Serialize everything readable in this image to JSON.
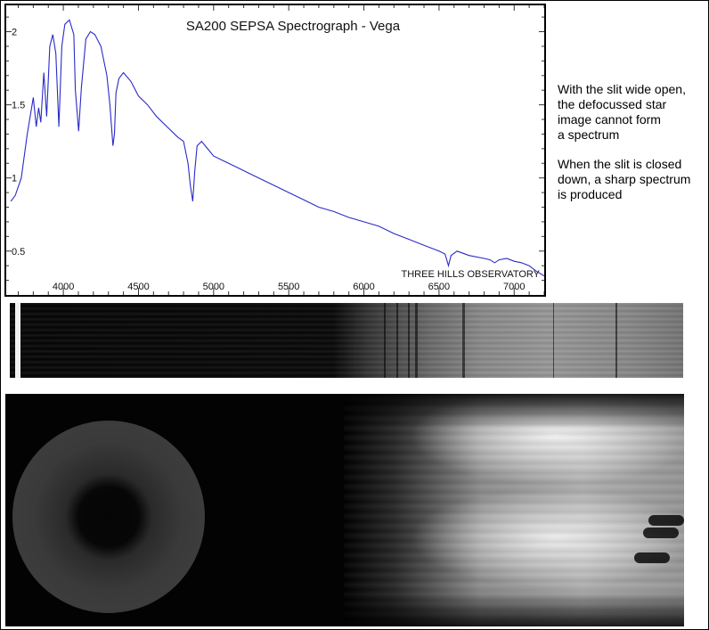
{
  "chart_data": {
    "type": "line",
    "title": "SA200 SEPSA Spectrograph - Vega",
    "watermark": "THREE HILLS OBSERVATORY",
    "xlim": [
      3620,
      7200
    ],
    "ylim": [
      0.2,
      2.18
    ],
    "xticks": [
      4000,
      4500,
      5000,
      5500,
      6000,
      6500,
      7000
    ],
    "yticks": [
      0.5,
      1,
      1.5,
      2
    ],
    "ytick_labels": [
      "0.5",
      "1",
      "1.5",
      "2"
    ],
    "line_color": "#2a2ac8",
    "series": [
      {
        "x": [
          3650,
          3680,
          3720,
          3760,
          3800,
          3820,
          3836,
          3850,
          3870,
          3889,
          3910,
          3930,
          3950,
          3970,
          3990,
          4010,
          4040,
          4070,
          4080,
          4102,
          4120,
          4150,
          4180,
          4210,
          4250,
          4290,
          4310,
          4330,
          4340,
          4350,
          4370,
          4400,
          4450,
          4500,
          4560,
          4620,
          4700,
          4760,
          4800,
          4830,
          4845,
          4861,
          4875,
          4890,
          4920,
          4960,
          5000,
          5100,
          5200,
          5300,
          5400,
          5500,
          5600,
          5700,
          5800,
          5900,
          6000,
          6100,
          6200,
          6300,
          6400,
          6500,
          6540,
          6563,
          6580,
          6620,
          6700,
          6800,
          6840,
          6870,
          6900,
          6950,
          7000,
          7050,
          7100,
          7150,
          7200
        ],
        "y": [
          0.84,
          0.88,
          1.0,
          1.3,
          1.55,
          1.35,
          1.48,
          1.38,
          1.72,
          1.42,
          1.9,
          1.98,
          1.85,
          1.35,
          1.9,
          2.05,
          2.08,
          1.98,
          1.6,
          1.32,
          1.62,
          1.95,
          2.0,
          1.98,
          1.9,
          1.7,
          1.5,
          1.22,
          1.3,
          1.58,
          1.68,
          1.72,
          1.66,
          1.56,
          1.5,
          1.42,
          1.34,
          1.28,
          1.25,
          1.1,
          0.95,
          0.84,
          1.05,
          1.22,
          1.25,
          1.2,
          1.15,
          1.1,
          1.05,
          1.0,
          0.95,
          0.9,
          0.85,
          0.8,
          0.77,
          0.73,
          0.7,
          0.67,
          0.62,
          0.58,
          0.54,
          0.5,
          0.48,
          0.4,
          0.47,
          0.5,
          0.47,
          0.45,
          0.44,
          0.42,
          0.44,
          0.45,
          0.43,
          0.42,
          0.4,
          0.36,
          0.33
        ]
      }
    ]
  },
  "notes": {
    "para1": "With the slit wide open,\nthe defocussed star\nimage cannot form\na spectrum",
    "para2": "When the slit is closed\ndown, a sharp spectrum\nis produced"
  }
}
